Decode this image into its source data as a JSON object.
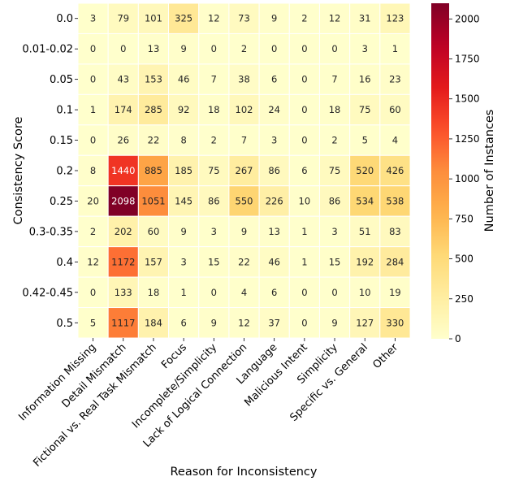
{
  "chart_data": {
    "type": "heatmap",
    "title": "",
    "xlabel": "Reason for Inconsistency",
    "ylabel": "Consistency Score",
    "x_categories": [
      "Information Missing",
      "Detail Mismatch",
      "Fictional vs. Real Task Mismatch",
      "Focus",
      "Incomplete/Simplicity",
      "Lack of Logical Connection",
      "Language",
      "Malicious Intent",
      "Simplicity",
      "Specific vs. General",
      "Other"
    ],
    "y_categories": [
      "0.0",
      "0.01-0.02",
      "0.05",
      "0.1",
      "0.15",
      "0.2",
      "0.25",
      "0.3-0.35",
      "0.4",
      "0.42-0.45",
      "0.5"
    ],
    "values": [
      [
        3,
        79,
        101,
        325,
        12,
        73,
        9,
        2,
        12,
        31,
        123
      ],
      [
        0,
        0,
        13,
        9,
        0,
        2,
        0,
        0,
        0,
        3,
        1
      ],
      [
        0,
        43,
        153,
        46,
        7,
        38,
        6,
        0,
        7,
        16,
        23
      ],
      [
        1,
        174,
        285,
        92,
        18,
        102,
        24,
        0,
        18,
        75,
        60
      ],
      [
        0,
        26,
        22,
        8,
        2,
        7,
        3,
        0,
        2,
        5,
        4
      ],
      [
        8,
        1440,
        885,
        185,
        75,
        267,
        86,
        6,
        75,
        520,
        426
      ],
      [
        20,
        2098,
        1051,
        145,
        86,
        550,
        226,
        10,
        86,
        534,
        538
      ],
      [
        2,
        202,
        60,
        9,
        3,
        9,
        13,
        1,
        3,
        51,
        83
      ],
      [
        12,
        1172,
        157,
        3,
        15,
        22,
        46,
        1,
        15,
        192,
        284
      ],
      [
        0,
        133,
        18,
        1,
        0,
        4,
        6,
        0,
        0,
        10,
        19
      ],
      [
        5,
        1117,
        184,
        6,
        9,
        12,
        37,
        0,
        9,
        127,
        330
      ]
    ],
    "colormap": "YlOrRd",
    "colorbar": {
      "label": "Number of Instances",
      "min": 0,
      "max": 2098,
      "ticks": [
        0,
        250,
        500,
        750,
        1000,
        1250,
        1500,
        1750,
        2000
      ]
    },
    "legend": "right"
  }
}
